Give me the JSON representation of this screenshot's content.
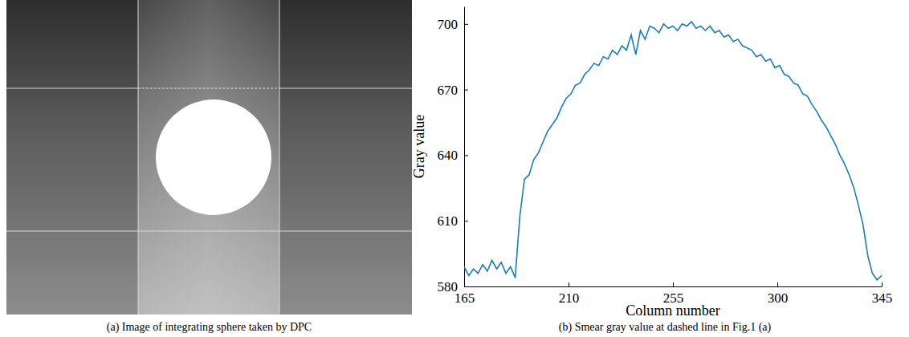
{
  "chart_data": [
    {
      "type": "image",
      "title": "(a) Image of integrating sphere taken by DPC"
    },
    {
      "type": "line",
      "title": "(b) Smear gray value at dashed line in Fig.1 (a)",
      "x_label": "Column number",
      "y_label": "Gray value",
      "x": [
        165,
        167,
        169,
        171,
        173,
        175,
        177,
        179,
        181,
        183,
        185,
        187,
        189,
        191,
        193,
        195,
        197,
        199,
        201,
        203,
        205,
        207,
        209,
        211,
        213,
        215,
        217,
        219,
        221,
        223,
        225,
        227,
        229,
        231,
        233,
        235,
        237,
        239,
        241,
        243,
        245,
        247,
        249,
        251,
        253,
        255,
        257,
        259,
        261,
        263,
        265,
        267,
        269,
        271,
        273,
        275,
        277,
        279,
        281,
        283,
        285,
        287,
        289,
        291,
        293,
        295,
        297,
        299,
        301,
        303,
        305,
        307,
        309,
        311,
        313,
        315,
        317,
        319,
        321,
        323,
        325,
        327,
        329,
        331,
        333,
        335,
        337,
        339,
        341,
        343,
        345
      ],
      "series": [
        {
          "color": "#1b7db3",
          "values": [
            589,
            585,
            588,
            586,
            590,
            587,
            592,
            588,
            591,
            586,
            589,
            584,
            612,
            629,
            631,
            638,
            641,
            646,
            651,
            654,
            657,
            662,
            666,
            668,
            672,
            673,
            677,
            679,
            682,
            681,
            685,
            684,
            688,
            686,
            690,
            688,
            695,
            686,
            697,
            693,
            699,
            698,
            696,
            700,
            698,
            699,
            697,
            700,
            699,
            701,
            698,
            699,
            697,
            699,
            696,
            697,
            694,
            695,
            692,
            693,
            690,
            689,
            688,
            685,
            686,
            683,
            684,
            680,
            681,
            677,
            676,
            673,
            672,
            668,
            667,
            663,
            660,
            656,
            653,
            649,
            645,
            640,
            636,
            631,
            625,
            617,
            608,
            594,
            586,
            583,
            585
          ]
        }
      ],
      "xlim": [
        165,
        345
      ],
      "ylim": [
        580,
        708
      ],
      "xticks": [
        165,
        210,
        255,
        300,
        345
      ],
      "yticks": [
        580,
        610,
        640,
        670,
        700
      ]
    }
  ]
}
